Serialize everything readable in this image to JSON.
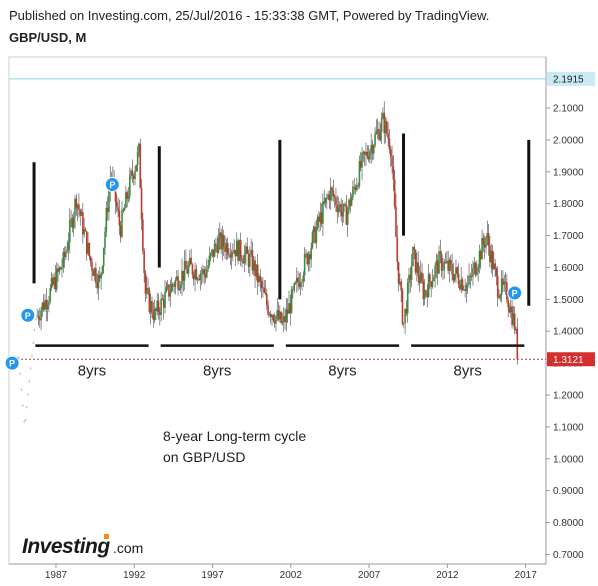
{
  "header": {
    "published": "Published on Investing.com, 25/Jul/2016 - 15:33:38 GMT, Powered by TradingView.",
    "symbol": "GBP/USD, M"
  },
  "logo": {
    "brand": "Investing",
    "suffix": ".com"
  },
  "chart_data": {
    "type": "candlestick",
    "ylim": [
      0.67,
      2.26
    ],
    "y_ticks": [
      "2.1000",
      "2.0000",
      "1.9000",
      "1.8000",
      "1.7000",
      "1.6000",
      "1.5000",
      "1.4000",
      "1.3000",
      "1.2000",
      "1.1000",
      "1.0000",
      "0.9000",
      "0.8000",
      "0.7000"
    ],
    "x_ticks": [
      "1987",
      "1992",
      "1997",
      "2002",
      "2007",
      "2012",
      "2017"
    ],
    "current_price": {
      "value": 1.3121,
      "label": "1.3121",
      "color": "#d32f2f"
    },
    "top_level": {
      "value": 2.1915,
      "label": "2.1915",
      "color": "#8fd3e8"
    },
    "annotation": {
      "line1": "8-year Long-term cycle",
      "line2": "on GBP/USD"
    },
    "cycles": [
      {
        "label": "8yrs",
        "start": 1985.3,
        "end": 1993.3
      },
      {
        "label": "8yrs",
        "start": 1993.3,
        "end": 2001.3
      },
      {
        "label": "8yrs",
        "start": 2001.3,
        "end": 2009.3
      },
      {
        "label": "8yrs",
        "start": 2009.3,
        "end": 2017.3
      }
    ],
    "cycle_bar_level": 1.355,
    "vertical_markers": [
      {
        "x": 1985.6,
        "from": 1.55,
        "to": 1.93
      },
      {
        "x": 1993.6,
        "from": 1.6,
        "to": 1.98
      },
      {
        "x": 2001.3,
        "from": 1.5,
        "to": 2.0
      },
      {
        "x": 2009.2,
        "from": 1.7,
        "to": 2.02
      },
      {
        "x": 2017.2,
        "from": 1.48,
        "to": 2.0
      }
    ],
    "p_markers": [
      {
        "x": 1984.2,
        "y": 1.3,
        "label": "P"
      },
      {
        "x": 1985.2,
        "y": 1.45,
        "label": "P"
      },
      {
        "x": 1990.6,
        "y": 1.86,
        "label": "P"
      },
      {
        "x": 2016.3,
        "y": 1.52,
        "label": "P"
      }
    ],
    "series_anchors": [
      [
        1984.6,
        1.34
      ],
      [
        1985.0,
        1.1
      ],
      [
        1985.7,
        1.44
      ],
      [
        1986.6,
        1.52
      ],
      [
        1987.5,
        1.62
      ],
      [
        1988.3,
        1.82
      ],
      [
        1989.2,
        1.62
      ],
      [
        1989.8,
        1.55
      ],
      [
        1990.5,
        1.9
      ],
      [
        1991.1,
        1.72
      ],
      [
        1991.8,
        1.88
      ],
      [
        1992.3,
        1.96
      ],
      [
        1992.7,
        1.52
      ],
      [
        1993.3,
        1.45
      ],
      [
        1994.5,
        1.55
      ],
      [
        1995.5,
        1.6
      ],
      [
        1996.5,
        1.58
      ],
      [
        1997.3,
        1.68
      ],
      [
        1998.5,
        1.66
      ],
      [
        1999.5,
        1.62
      ],
      [
        2000.5,
        1.48
      ],
      [
        2001.5,
        1.42
      ],
      [
        2002.5,
        1.56
      ],
      [
        2003.5,
        1.7
      ],
      [
        2004.5,
        1.84
      ],
      [
        2005.5,
        1.76
      ],
      [
        2006.5,
        1.92
      ],
      [
        2007.5,
        2.02
      ],
      [
        2007.9,
        2.06
      ],
      [
        2008.4,
        1.98
      ],
      [
        2008.8,
        1.62
      ],
      [
        2009.2,
        1.42
      ],
      [
        2009.8,
        1.64
      ],
      [
        2010.5,
        1.52
      ],
      [
        2011.5,
        1.62
      ],
      [
        2012.5,
        1.58
      ],
      [
        2013.3,
        1.54
      ],
      [
        2014.5,
        1.7
      ],
      [
        2015.2,
        1.54
      ],
      [
        2015.8,
        1.52
      ],
      [
        2016.3,
        1.42
      ],
      [
        2016.5,
        1.32
      ]
    ]
  }
}
